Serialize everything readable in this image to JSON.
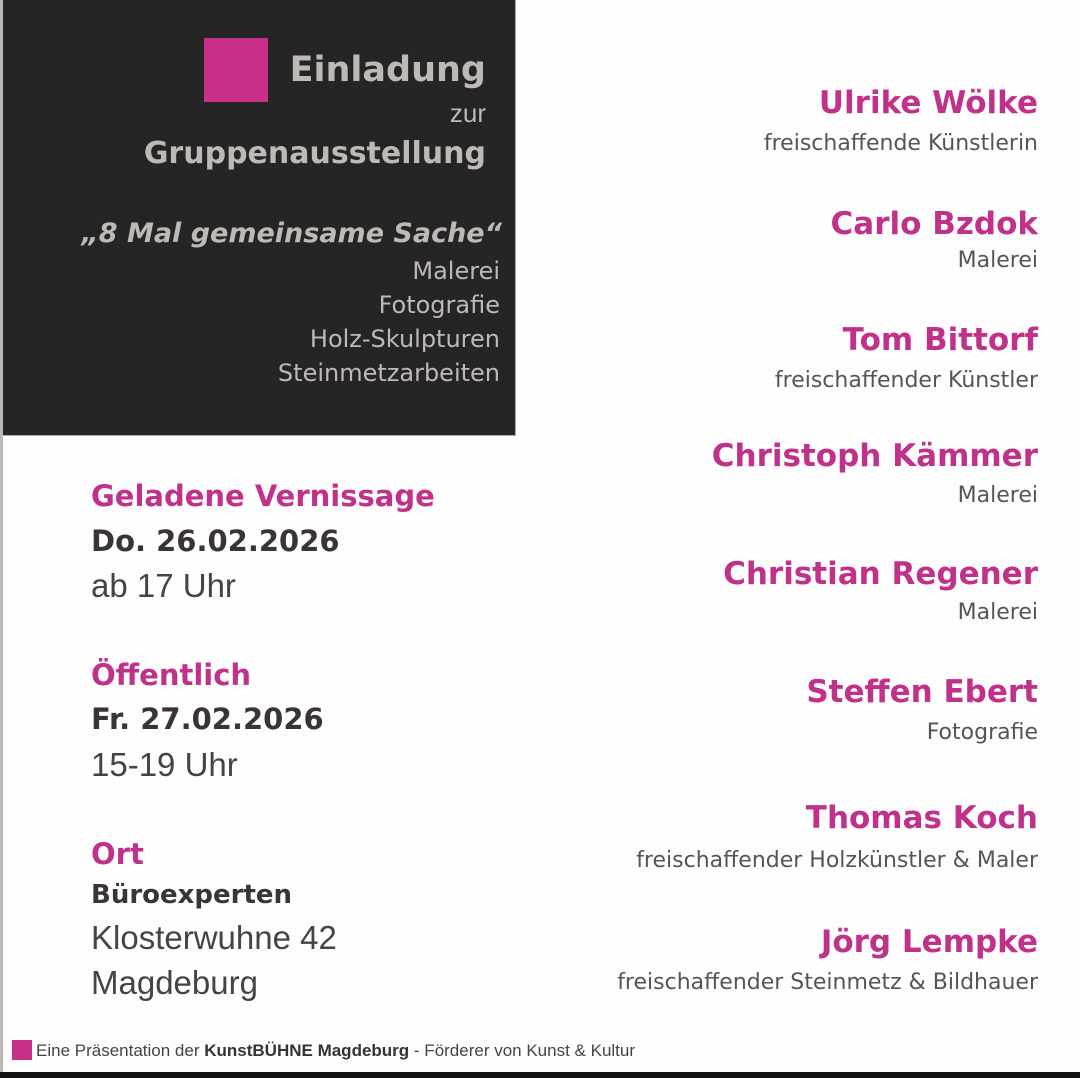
{
  "colors": {
    "accent": "#c8308a",
    "dark_panel": "#252525",
    "panel_text": "#c0b8b5"
  },
  "header": {
    "title": "Einladung",
    "connector": "zur",
    "subtitle": "Gruppenausstellung",
    "exhibition_name": "„8 Mal gemeinsame Sache“",
    "disciplines": [
      "Malerei",
      "Fotografie",
      "Holz-Skulpturen",
      "Steinmetzarbeiten"
    ]
  },
  "events": [
    {
      "label": "Geladene Vernissage",
      "date": "Do. 26.02.2026",
      "time": "ab 17 Uhr"
    },
    {
      "label": "Öffentlich",
      "date": "Fr. 27.02.2026",
      "time": "15-19 Uhr"
    }
  ],
  "location": {
    "label": "Ort",
    "name": "Büroexperten",
    "street": "Klosterwuhne 42",
    "city": "Magdeburg"
  },
  "artists": [
    {
      "name": "Ulrike Wölke",
      "role": "freischaffende Künstlerin"
    },
    {
      "name": "Carlo Bzdok",
      "role": "Malerei"
    },
    {
      "name": "Tom Bittorf",
      "role": "freischaffender Künstler"
    },
    {
      "name": "Christoph Kämmer",
      "role": "Malerei"
    },
    {
      "name": "Christian Regener",
      "role": "Malerei"
    },
    {
      "name": "Steffen Ebert",
      "role": "Fotografie"
    },
    {
      "name": "Thomas Koch",
      "role": "freischaffender Holzkünstler & Maler"
    },
    {
      "name": "Jörg Lempke",
      "role": "freischaffender Steinmetz & Bildhauer"
    }
  ],
  "footer": {
    "prefix": "Eine Präsentation der",
    "organization": "KunstBÜHNE Magdeburg",
    "suffix": "- Förderer von Kunst & Kultur"
  }
}
